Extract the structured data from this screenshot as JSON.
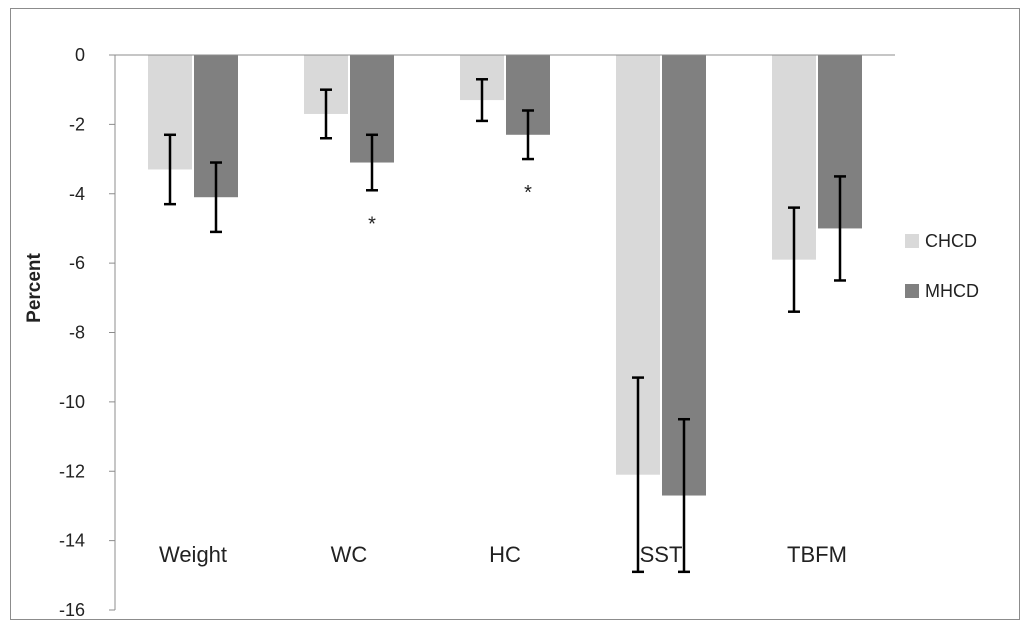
{
  "chart_data": {
    "type": "bar",
    "title": "",
    "xlabel": "",
    "ylabel": "Percent",
    "ylim": [
      -16,
      0
    ],
    "yticks": [
      0,
      -2,
      -4,
      -6,
      -8,
      -10,
      -12,
      -14,
      -16
    ],
    "categories": [
      "Weight",
      "WC",
      "HC",
      "SST",
      "TBFM"
    ],
    "series": [
      {
        "name": "CHCD",
        "color": "#d9d9d9",
        "values": [
          -3.3,
          -1.7,
          -1.3,
          -12.1,
          -5.9
        ],
        "error": [
          1.0,
          0.7,
          0.6,
          2.8,
          1.5
        ]
      },
      {
        "name": "MHCD",
        "color": "#808080",
        "values": [
          -4.1,
          -3.1,
          -2.3,
          -12.7,
          -5.0
        ],
        "error": [
          1.0,
          0.8,
          0.7,
          2.2,
          1.5
        ]
      }
    ],
    "annotations": [
      {
        "category": "WC",
        "series": "MHCD",
        "text": "*"
      },
      {
        "category": "HC",
        "series": "MHCD",
        "text": "*"
      }
    ],
    "legend": "right",
    "grid": false
  }
}
